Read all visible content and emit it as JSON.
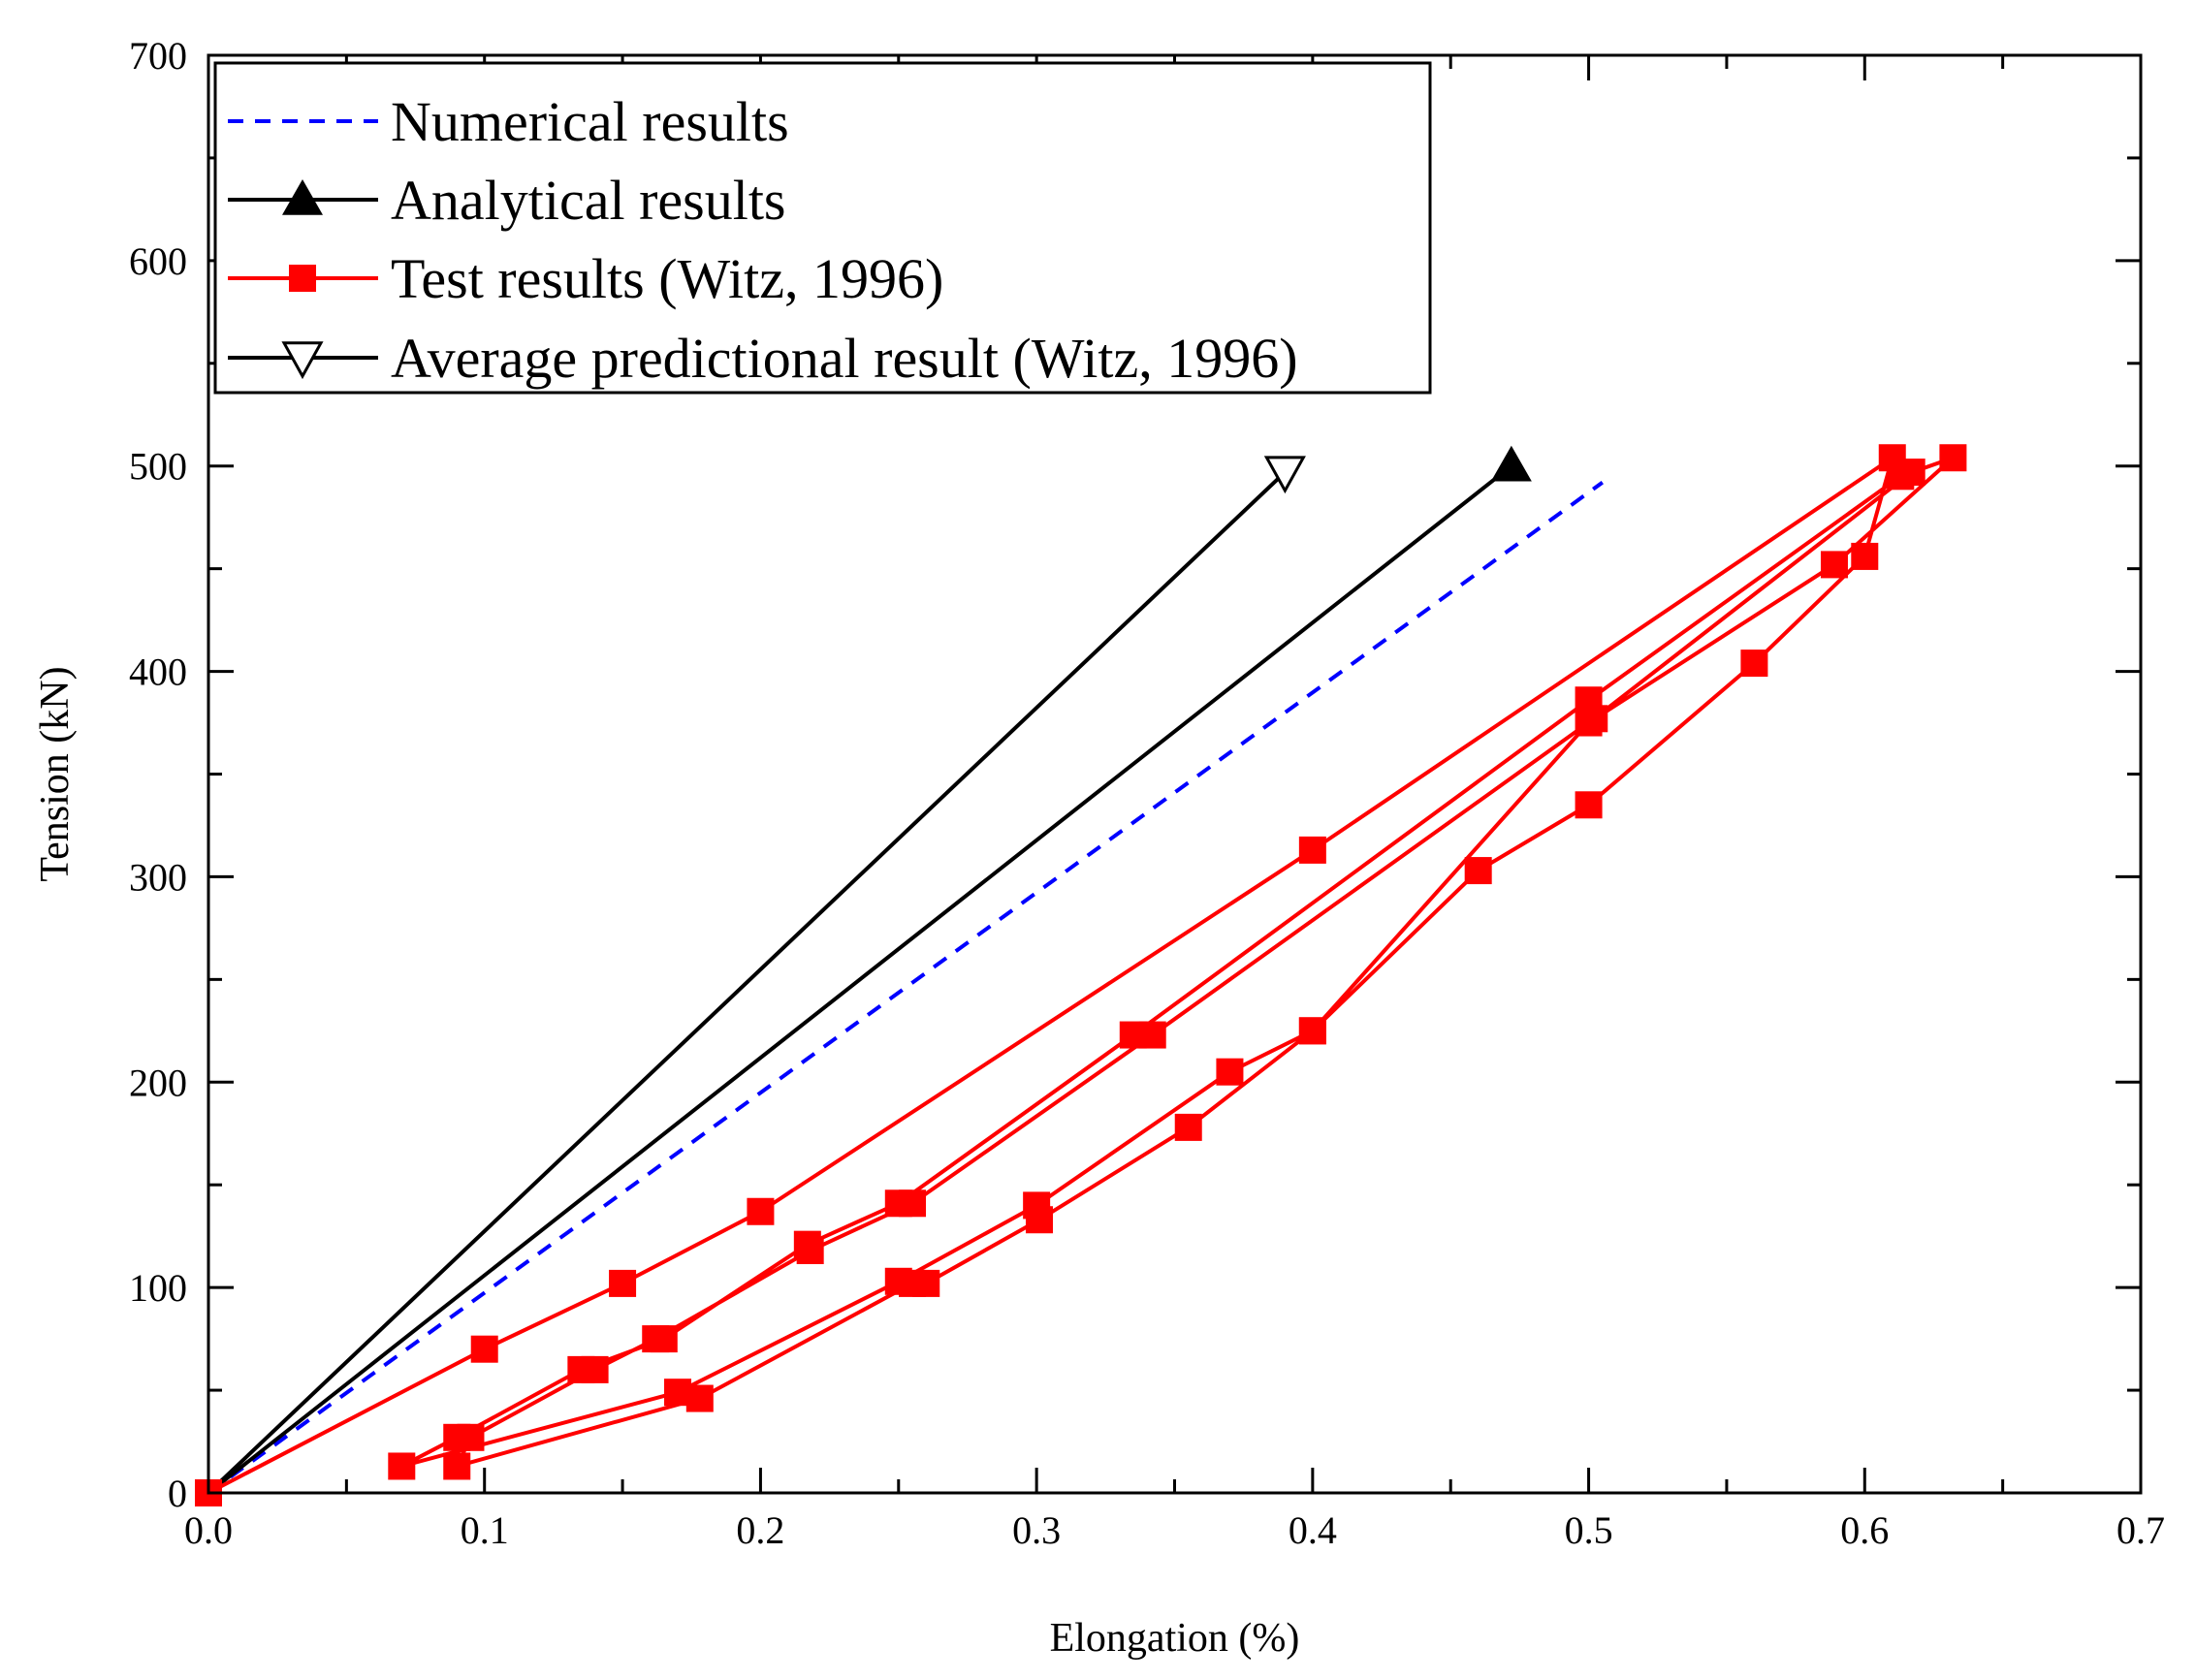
{
  "chart_data": {
    "type": "line",
    "title": "",
    "xlabel": "Elongation (%)",
    "ylabel": "Tension (kN)",
    "xlim": [
      0.0,
      0.7
    ],
    "ylim": [
      0,
      700
    ],
    "xticks": [
      0.0,
      0.1,
      0.2,
      0.3,
      0.4,
      0.5,
      0.6,
      0.7
    ],
    "xtick_labels": [
      "0.0",
      "0.1",
      "0.2",
      "0.3",
      "0.4",
      "0.5",
      "0.6",
      "0.7"
    ],
    "yticks": [
      0,
      100,
      200,
      300,
      400,
      500,
      600,
      700
    ],
    "ytick_labels": [
      "0",
      "100",
      "200",
      "300",
      "400",
      "500",
      "600",
      "700"
    ],
    "grid": false,
    "legend_position": "top-left",
    "series": [
      {
        "name": "Numerical results",
        "color": "#0000ff",
        "line_style": "dashed",
        "marker": "none",
        "x": [
          0.0,
          0.505
        ],
        "y": [
          0,
          492
        ]
      },
      {
        "name": "Analytical results",
        "color": "#000000",
        "line_style": "solid",
        "marker": "triangle-up-filled",
        "marker_indices": [
          1
        ],
        "x": [
          0.0,
          0.472
        ],
        "y": [
          0,
          500
        ]
      },
      {
        "name": "Test results (Witz, 1996)",
        "color": "#ff0000",
        "line_style": "solid",
        "marker": "square-filled",
        "x": [
          0.0,
          0.1,
          0.15,
          0.2,
          0.4,
          0.61,
          0.6,
          0.56,
          0.5,
          0.46,
          0.4,
          0.37,
          0.3,
          0.25,
          0.17,
          0.07,
          0.09,
          0.135,
          0.165,
          0.217,
          0.25,
          0.335,
          0.5,
          0.613,
          0.632,
          0.589,
          0.5,
          0.4,
          0.355,
          0.301,
          0.26,
          0.255,
          0.178,
          0.09,
          0.095,
          0.14,
          0.162,
          0.218,
          0.255,
          0.342,
          0.502,
          0.617
        ],
        "y": [
          0,
          70,
          102,
          137,
          313,
          504,
          456,
          404,
          335,
          303,
          225,
          205,
          140,
          103,
          49,
          13,
          27,
          60,
          75,
          121,
          141,
          223,
          386,
          495,
          504,
          452,
          375,
          225,
          178,
          133,
          102,
          102,
          46,
          13,
          27,
          60,
          75,
          118,
          141,
          223,
          377,
          497
        ]
      },
      {
        "name": "Average predictional result (Witz, 1996)",
        "color": "#000000",
        "line_style": "solid",
        "marker": "triangle-down-open",
        "marker_indices": [
          1
        ],
        "x": [
          0.0,
          0.39
        ],
        "y": [
          0,
          497
        ]
      }
    ]
  }
}
